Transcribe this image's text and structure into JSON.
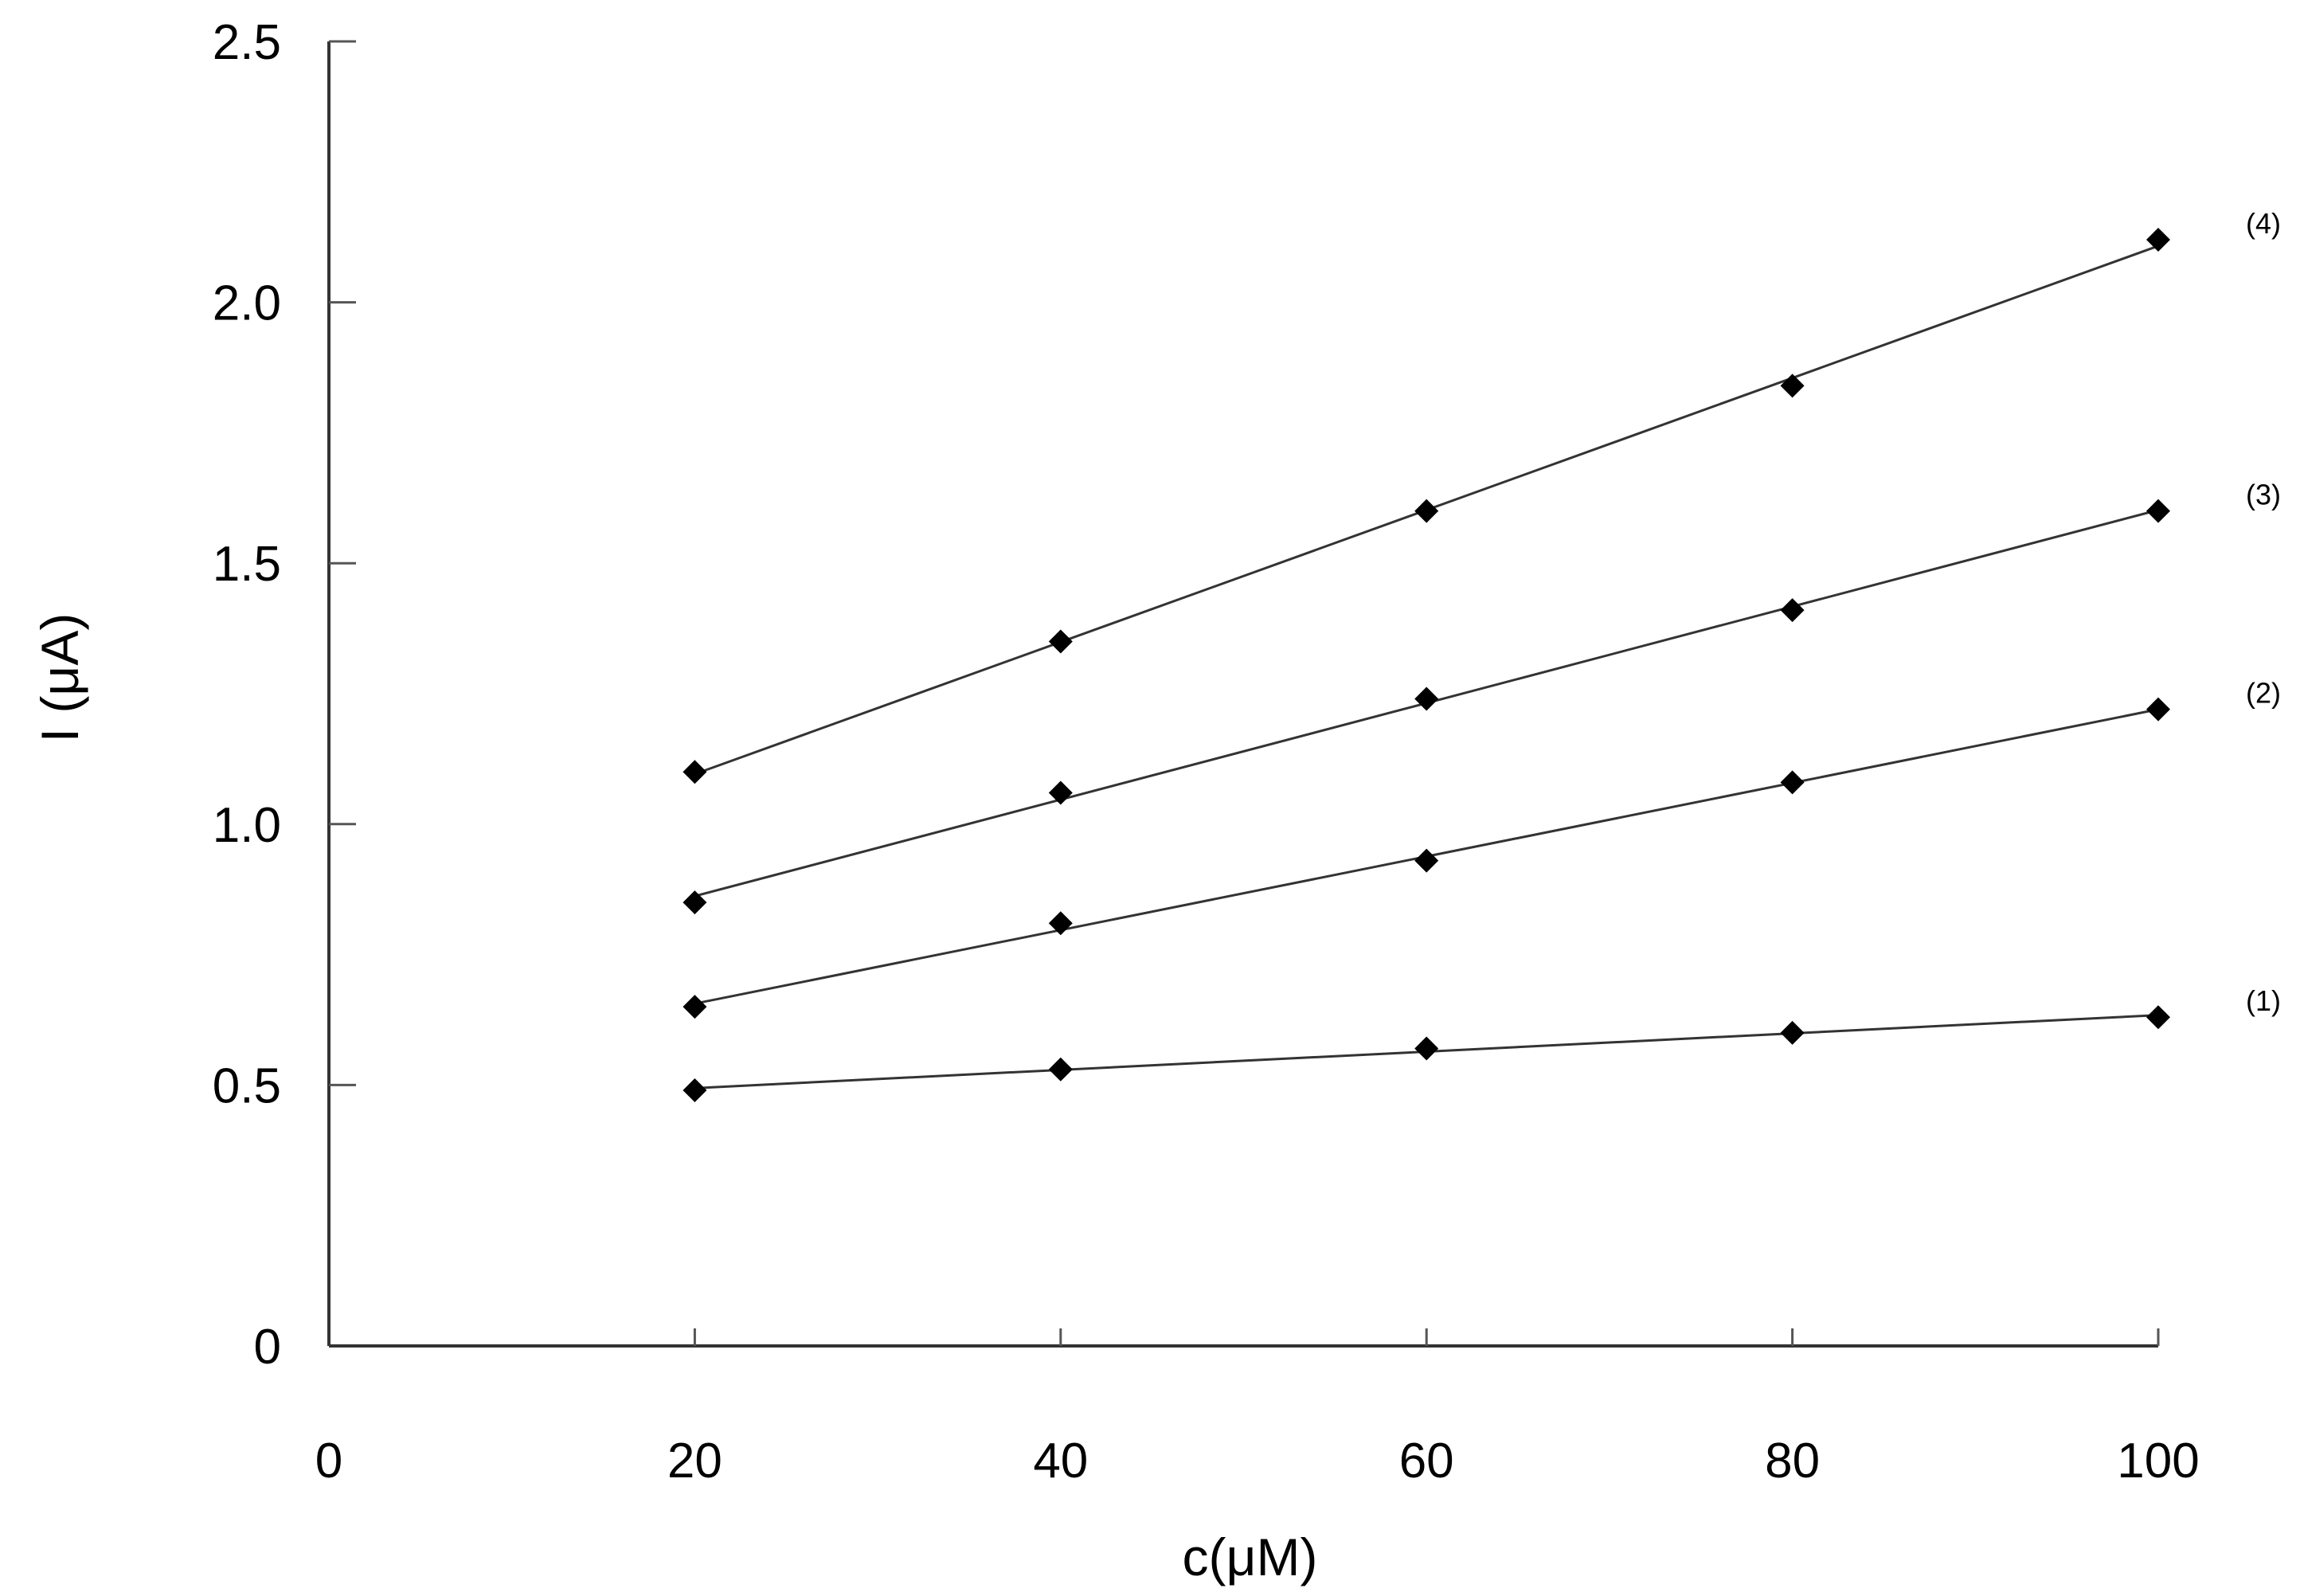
{
  "chart_data": {
    "type": "line",
    "xlabel": "c(μM)",
    "ylabel": "I (μA)",
    "xlim": [
      0,
      100
    ],
    "ylim": [
      0,
      2.5
    ],
    "x_ticks": [
      "0",
      "20",
      "40",
      "60",
      "80",
      "100"
    ],
    "y_ticks": [
      "0",
      "0.5",
      "1.0",
      "1.5",
      "2.0",
      "2.5"
    ],
    "grid": false,
    "x": [
      20,
      40,
      60,
      80,
      100
    ],
    "series": [
      {
        "name": "(1)",
        "values": [
          0.49,
          0.53,
          0.57,
          0.6,
          0.63
        ]
      },
      {
        "name": "(2)",
        "values": [
          0.65,
          0.81,
          0.93,
          1.08,
          1.22
        ]
      },
      {
        "name": "(3)",
        "values": [
          0.85,
          1.06,
          1.24,
          1.41,
          1.6
        ]
      },
      {
        "name": "(4)",
        "values": [
          1.1,
          1.35,
          1.6,
          1.84,
          2.12
        ]
      }
    ],
    "marker": "diamond",
    "marker_color": "#000000",
    "line_color": "#333333"
  }
}
